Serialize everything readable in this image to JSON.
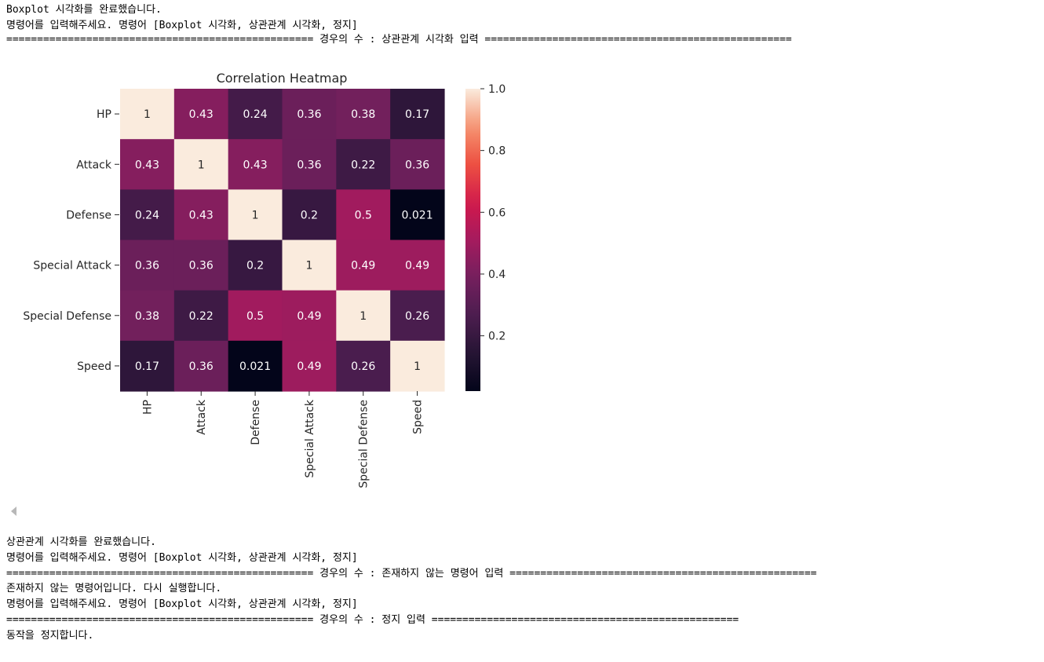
{
  "output_top": [
    "Boxplot 시각화를 완료했습니다.",
    "명령어를 입력해주세요. 명령어 [Boxplot 시각화, 상관관계 시각화, 정지]",
    "================================================== 경우의 수 : 상관관계 시각화 입력 =================================================="
  ],
  "output_bottom": [
    "상관관계 시각화를 완료했습니다.",
    "명령어를 입력해주세요. 명령어 [Boxplot 시각화, 상관관계 시각화, 정지]",
    "================================================== 경우의 수 : 존재하지 않는 명령어 입력 ==================================================",
    "존재하지 않는 명령어입니다. 다시 실행합니다.",
    "명령어를 입력해주세요. 명령어 [Boxplot 시각화, 상관관계 시각화, 정지]",
    "================================================== 경우의 수 : 정지 입력 ==================================================",
    "동작을 정지합니다."
  ],
  "scroll_icon": "scroll-left-icon",
  "chart_data": {
    "type": "heatmap",
    "title": "Correlation Heatmap",
    "rows": [
      "HP",
      "Attack",
      "Defense",
      "Special Attack",
      "Special Defense",
      "Speed"
    ],
    "columns": [
      "HP",
      "Attack",
      "Defense",
      "Special Attack",
      "Special Defense",
      "Speed"
    ],
    "values": [
      [
        1,
        0.43,
        0.24,
        0.36,
        0.38,
        0.17
      ],
      [
        0.43,
        1,
        0.43,
        0.36,
        0.22,
        0.36
      ],
      [
        0.24,
        0.43,
        1,
        0.2,
        0.5,
        0.021
      ],
      [
        0.36,
        0.36,
        0.2,
        1,
        0.49,
        0.49
      ],
      [
        0.38,
        0.22,
        0.5,
        0.49,
        1,
        0.26
      ],
      [
        0.17,
        0.36,
        0.021,
        0.49,
        0.26,
        1
      ]
    ],
    "colorbar": {
      "range": [
        0.021,
        1.0
      ],
      "ticks": [
        "1.0",
        "0.8",
        "0.6",
        "0.4",
        "0.2"
      ],
      "tick_values": [
        1.0,
        0.8,
        0.6,
        0.4,
        0.2
      ],
      "colormap": "rocket"
    },
    "annotated": true
  }
}
